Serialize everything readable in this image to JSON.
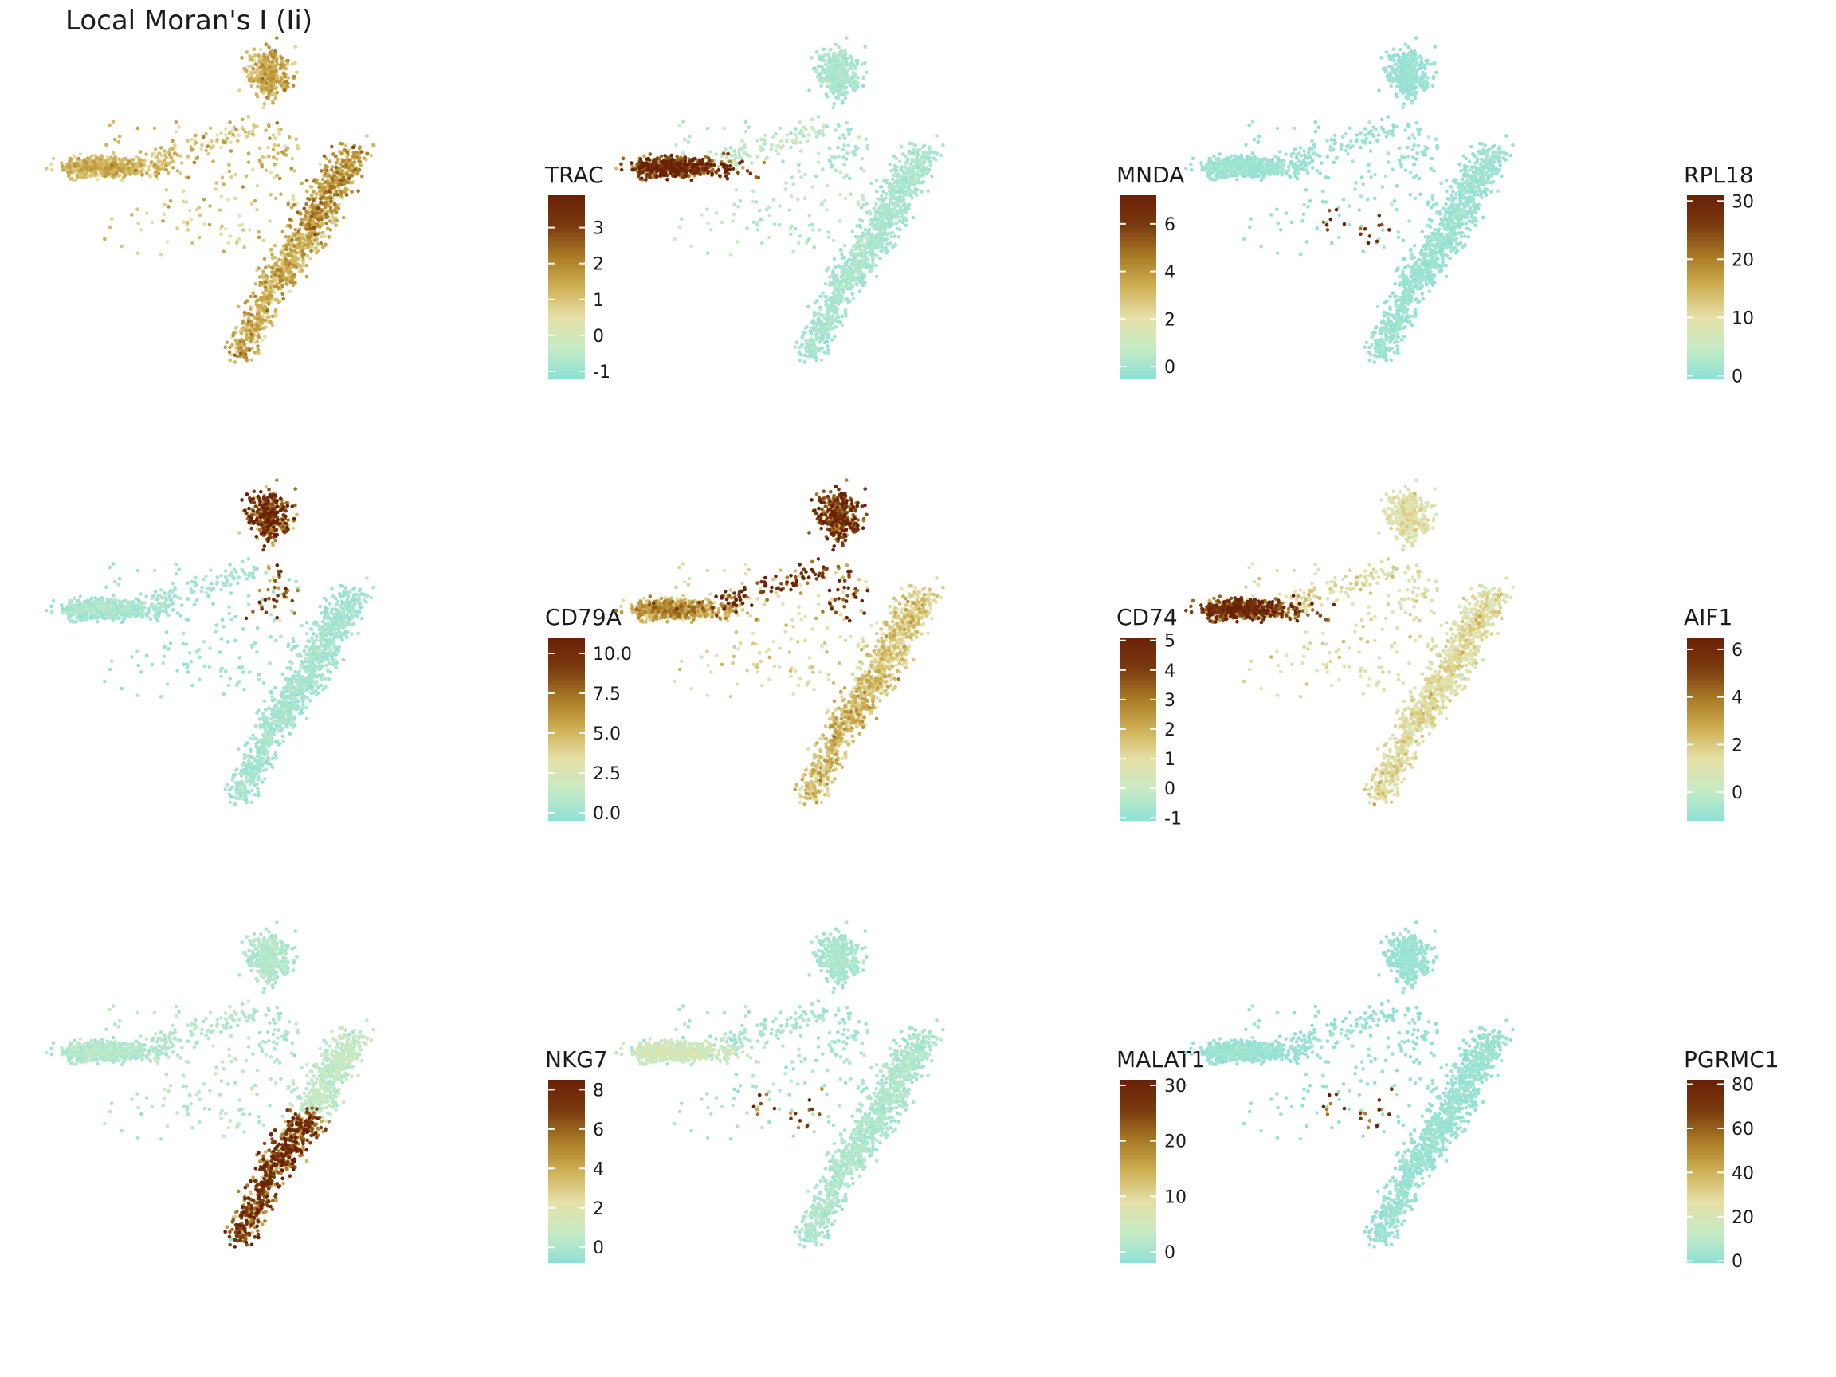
{
  "title": "Local Moran's I (Ii)",
  "colorscale": [
    "#8ee0d6",
    "#c6ebc4",
    "#e6e0a8",
    "#cfb055",
    "#a97a25",
    "#7a3a0f",
    "#6a2005"
  ],
  "chart_data": [
    {
      "type": "scatter",
      "gene": "TRAC",
      "legend_title": "TRAC",
      "vmin": -1.2,
      "vmax": 3.9,
      "ticks": [
        "3",
        "2",
        "1",
        "0",
        "-1"
      ],
      "tick_values": [
        3,
        2,
        1,
        0,
        -1
      ],
      "clusters": {
        "B": 1.2,
        "Mono": 1.0,
        "T": 1.5,
        "Tlow": 1.2,
        "spur": 1.0,
        "scat": 1.0,
        "sub": 0.4
      }
    },
    {
      "type": "scatter",
      "gene": "MNDA",
      "legend_title": "MNDA",
      "vmin": -0.5,
      "vmax": 7.2,
      "ticks": [
        "6",
        "4",
        "2",
        "0"
      ],
      "tick_values": [
        6,
        4,
        2,
        0
      ],
      "clusters": {
        "B": 0.0,
        "Mono": 5.5,
        "T": 0.0,
        "Tlow": 0.0,
        "spur": 0.6,
        "scat": 0.5,
        "sub": 0.2
      }
    },
    {
      "type": "scatter",
      "gene": "RPL18",
      "legend_title": "RPL18",
      "vmin": -0.5,
      "vmax": 31,
      "ticks": [
        "30",
        "20",
        "10",
        "0"
      ],
      "tick_values": [
        30,
        20,
        10,
        0
      ],
      "clusters": {
        "B": 0.0,
        "Mono": 0.0,
        "T": 0.3,
        "Tlow": 0.2,
        "spur": 0.5,
        "scat": 0.5,
        "sub": 30
      }
    },
    {
      "type": "scatter",
      "gene": "CD79A",
      "legend_title": "CD79A",
      "vmin": -0.5,
      "vmax": 11,
      "ticks": [
        "10.0",
        "7.5",
        "5.0",
        "2.5",
        "0.0"
      ],
      "tick_values": [
        10,
        7.5,
        5,
        2.5,
        0
      ],
      "clusters": {
        "B": 8.5,
        "Mono": 0.1,
        "T": 0.1,
        "Tlow": 0.1,
        "spur": 0.2,
        "scat": 0.1,
        "sub": 0.1
      }
    },
    {
      "type": "scatter",
      "gene": "CD74",
      "legend_title": "CD74",
      "vmin": -1.1,
      "vmax": 5.1,
      "ticks": [
        "5",
        "4",
        "3",
        "2",
        "1",
        "0",
        "-1"
      ],
      "tick_values": [
        5,
        4,
        3,
        2,
        1,
        0,
        -1
      ],
      "clusters": {
        "B": 3.8,
        "Mono": 2.0,
        "T": 1.3,
        "Tlow": 1.5,
        "spur": 4.2,
        "scat": 1.0,
        "sub": 1.0
      }
    },
    {
      "type": "scatter",
      "gene": "AIF1",
      "legend_title": "AIF1",
      "vmin": -1.2,
      "vmax": 6.5,
      "ticks": [
        "6",
        "4",
        "2",
        "0"
      ],
      "tick_values": [
        6,
        4,
        2,
        0
      ],
      "clusters": {
        "B": 1.0,
        "Mono": 4.8,
        "T": 1.2,
        "Tlow": 1.2,
        "spur": 1.5,
        "scat": 1.2,
        "sub": 1.0
      }
    },
    {
      "type": "scatter",
      "gene": "NKG7",
      "legend_title": "NKG7",
      "vmin": -0.8,
      "vmax": 8.5,
      "ticks": [
        "8",
        "6",
        "4",
        "2",
        "0"
      ],
      "tick_values": [
        8,
        6,
        4,
        2,
        0
      ],
      "clusters": {
        "B": 0.0,
        "Mono": 0.0,
        "T": 0.5,
        "Tlow": 6.5,
        "spur": 0.2,
        "scat": 0.3,
        "sub": 0.2
      }
    },
    {
      "type": "scatter",
      "gene": "MALAT1",
      "legend_title": "MALAT1",
      "vmin": -2,
      "vmax": 31,
      "ticks": [
        "30",
        "20",
        "10",
        "0"
      ],
      "tick_values": [
        30,
        20,
        10,
        0
      ],
      "clusters": {
        "B": 0.0,
        "Mono": 4.0,
        "T": 0.5,
        "Tlow": 0.5,
        "spur": 0.5,
        "scat": 0.5,
        "sub": 25
      }
    },
    {
      "type": "scatter",
      "gene": "PGRMC1",
      "legend_title": "PGRMC1",
      "vmin": -1,
      "vmax": 82,
      "ticks": [
        "80",
        "60",
        "40",
        "20",
        "0"
      ],
      "tick_values": [
        80,
        60,
        40,
        20,
        0
      ],
      "clusters": {
        "B": 0.0,
        "Mono": 0.0,
        "T": 0.3,
        "Tlow": 0.3,
        "spur": 0.3,
        "scat": 0.3,
        "sub": 70
      }
    }
  ]
}
